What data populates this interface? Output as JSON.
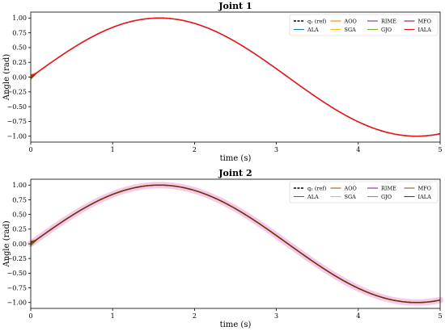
{
  "chart_data": [
    {
      "type": "line",
      "title": "Joint 1",
      "xlabel": "time (s)",
      "ylabel": "Angle (rad)",
      "xlim": [
        0,
        5
      ],
      "ylim": [
        -1.1,
        1.1
      ],
      "xticks": [
        "0",
        "1",
        "2",
        "3",
        "4",
        "5"
      ],
      "yticks": [
        "1.00",
        "0.75",
        "0.50",
        "0.25",
        "0.00",
        "−0.25",
        "−0.50",
        "−0.75",
        "−1.00"
      ],
      "grid": false,
      "legend_placement": "top-right",
      "series": [
        {
          "name": "q₁ (ref)",
          "color": "#000000",
          "style": "dashed",
          "function": "sin(t)"
        },
        {
          "name": "ALA",
          "color": "#1f77b4",
          "style": "solid",
          "function": "sin(t)"
        },
        {
          "name": "AOO",
          "color": "#ff7f0e",
          "style": "solid",
          "function": "sin(t)"
        },
        {
          "name": "SGA",
          "color": "#f2c010",
          "style": "solid",
          "function": "sin(t)"
        },
        {
          "name": "RIME",
          "color": "#7e2f8e",
          "style": "solid",
          "function": "sin(t)"
        },
        {
          "name": "GJO",
          "color": "#77ac30",
          "style": "solid",
          "function": "sin(t)"
        },
        {
          "name": "MFO",
          "color": "#a2142f",
          "style": "solid",
          "function": "sin(t)"
        },
        {
          "name": "IALA",
          "color": "#e8161b",
          "style": "solid",
          "function": "sin(t)"
        }
      ],
      "sample_points": {
        "x": [
          0,
          0.5,
          1,
          1.5708,
          2,
          2.5,
          3,
          3.5,
          4,
          4.7124,
          5
        ],
        "y": [
          0.0,
          0.48,
          0.84,
          1.0,
          0.91,
          0.6,
          0.14,
          -0.35,
          -0.76,
          -1.0,
          -0.96
        ]
      }
    },
    {
      "type": "line",
      "title": "Joint 2",
      "xlabel": "time (s)",
      "ylabel": "Angle (rad)",
      "xlim": [
        0,
        5
      ],
      "ylim": [
        -1.1,
        1.1
      ],
      "xticks": [
        "0",
        "1",
        "2",
        "3",
        "4",
        "5"
      ],
      "yticks": [
        "1.00",
        "0.75",
        "0.50",
        "0.25",
        "0.00",
        "−0.25",
        "−0.50",
        "−0.75",
        "−1.00"
      ],
      "grid": false,
      "legend_placement": "top-right",
      "series": [
        {
          "name": "q₂ (ref)",
          "color": "#000000",
          "style": "dashed",
          "function": "sin(t)"
        },
        {
          "name": "ALA",
          "color": "#1f77b4",
          "style": "solid",
          "function": "sin(t)"
        },
        {
          "name": "AOO",
          "color": "#a65f16",
          "style": "solid",
          "function": "sin(t)"
        },
        {
          "name": "SGA",
          "color": "#f2c010",
          "style": "solid",
          "function": "sin(t)"
        },
        {
          "name": "RIME",
          "color": "#7e2f8e",
          "style": "solid",
          "function": "sin(t)"
        },
        {
          "name": "GJO",
          "color": "#77ac30",
          "style": "solid",
          "function": "sin(t)"
        },
        {
          "name": "MFO",
          "color": "#8c5a2b",
          "style": "solid",
          "function": "sin(t)"
        },
        {
          "name": "IALA",
          "color": "#6b3410",
          "style": "solid",
          "function": "sin(t)"
        }
      ],
      "sample_points": {
        "x": [
          0,
          0.5,
          1,
          1.5708,
          2,
          2.5,
          3,
          3.5,
          4,
          4.7124,
          5
        ],
        "y": [
          0.0,
          0.48,
          0.84,
          1.0,
          0.91,
          0.6,
          0.14,
          -0.35,
          -0.76,
          -1.0,
          -0.96
        ]
      }
    }
  ]
}
